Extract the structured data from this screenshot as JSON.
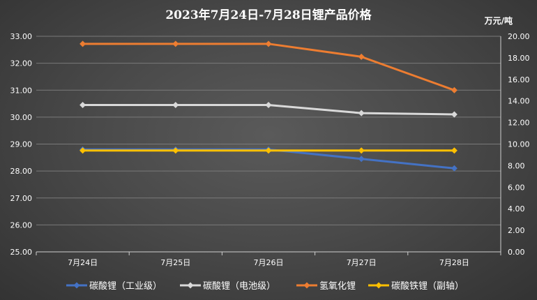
{
  "chart_data": {
    "type": "line",
    "title": "2023年7月24日-7月28日锂产品价格",
    "right_axis_unit": "万元/吨",
    "categories": [
      "7月24日",
      "7月25日",
      "7月26日",
      "7月27日",
      "7月28日"
    ],
    "left_axis": {
      "ylim": [
        25,
        33
      ],
      "ticks": [
        "25.00",
        "26.00",
        "27.00",
        "28.00",
        "29.00",
        "30.00",
        "31.00",
        "32.00",
        "33.00"
      ]
    },
    "right_axis": {
      "ylim": [
        0,
        20
      ],
      "ticks": [
        "0.00",
        "2.00",
        "4.00",
        "6.00",
        "8.00",
        "10.00",
        "12.00",
        "14.00",
        "16.00",
        "18.00",
        "20.00"
      ]
    },
    "grid": true,
    "legend_position": "bottom",
    "series": [
      {
        "name": "碳酸锂（工业级）",
        "axis": "left",
        "color": "#4472C4",
        "values": [
          28.8,
          28.8,
          28.8,
          28.45,
          28.1
        ]
      },
      {
        "name": "碳酸锂（电池级）",
        "axis": "left",
        "color": "#D9D9D9",
        "values": [
          30.45,
          30.45,
          30.45,
          30.15,
          30.1
        ]
      },
      {
        "name": "氢氧化锂",
        "axis": "right",
        "color": "#ED7D31",
        "values": [
          19.3,
          19.3,
          19.3,
          18.1,
          15.0
        ]
      },
      {
        "name": "碳酸铁锂（副轴）",
        "axis": "right",
        "color": "#FFC000",
        "values": [
          9.4,
          9.4,
          9.4,
          9.4,
          9.4
        ]
      }
    ]
  }
}
